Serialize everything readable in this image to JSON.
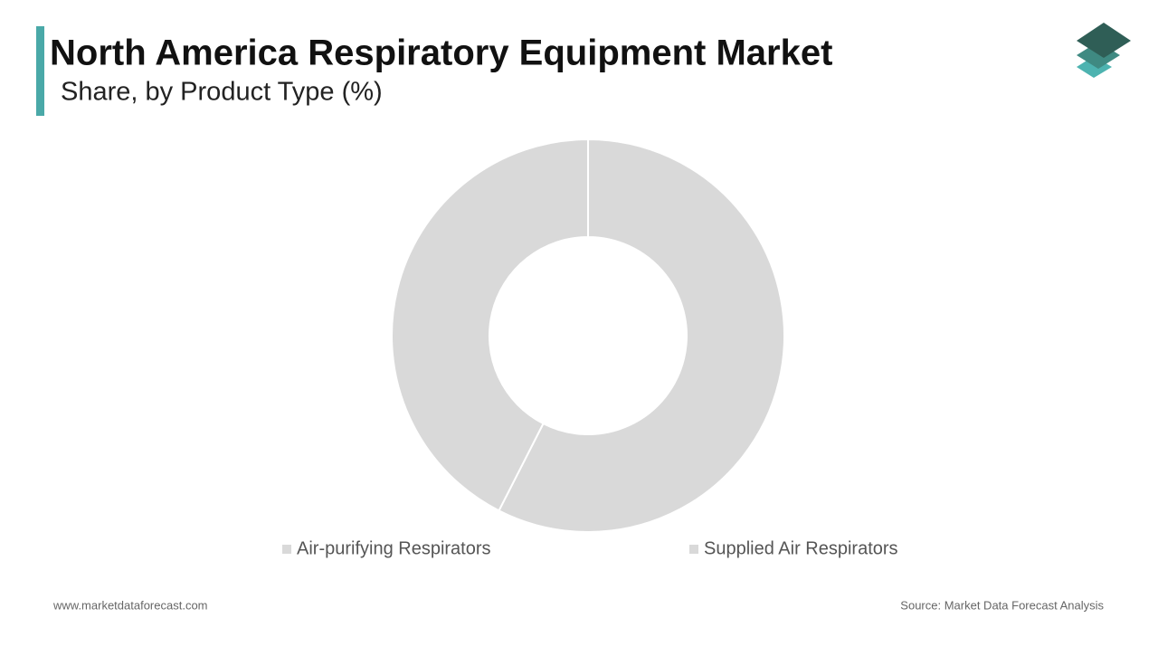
{
  "chart_data": {
    "type": "donut",
    "title": "North America Respiratory Equipment Market",
    "subtitle": "Share, by Product Type (%)",
    "categories": [
      "Air-purifying Respirators",
      "Supplied Air Respirators"
    ],
    "values": [
      57.5,
      42.5
    ],
    "colors": [
      "#d9d9d9",
      "#d9d9d9"
    ]
  },
  "footer": {
    "website": "www.marketdataforecast.com",
    "source": "Source: Market Data Forecast Analysis"
  }
}
